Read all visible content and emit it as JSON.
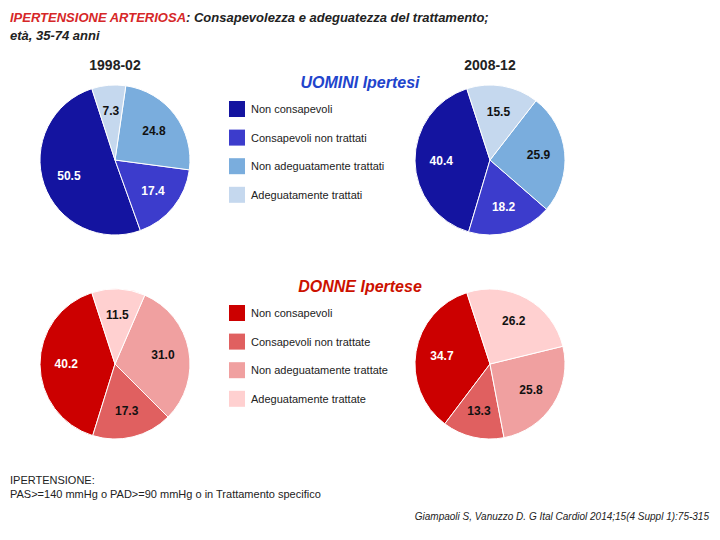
{
  "title": [
    "IPERTENSIONE ARTERIOSA",
    ": Consapevolezza e adeguatezza del trattamento;"
  ],
  "subtitle": "età, 35-74 anni",
  "annotations": [
    "IPERTENSIONE:",
    "PAS>=140 mmHg o PAD>=90 mmHg o in Trattamento specifico",
    "Giampaoli S, Vanuzzo D. G Ital Cardiol 2014;15(4 Suppl 1):75-315"
  ],
  "chart_data": [
    {
      "type": "pie",
      "title": "UOMINI Ipertesi",
      "color": "#2244cc",
      "categories": [
        "Non consapevoli",
        "Consapevoli non trattati",
        "Non adeguatamente trattati",
        "Adeguatamente trattati"
      ],
      "colors": [
        "#1414a0",
        "#3c3ccc",
        "#7aaddd",
        "#c5d8ee"
      ],
      "series": [
        {
          "name": "1998-02",
          "values": [
            50.5,
            17.4,
            24.8,
            7.3
          ]
        },
        {
          "name": "2008-12",
          "values": [
            40.4,
            18.2,
            25.9,
            15.5
          ]
        }
      ],
      "data_labels": true,
      "legend": "center"
    },
    {
      "type": "pie",
      "title": "DONNE Ipertese",
      "color": "#cc1100",
      "categories": [
        "Non consapevoli",
        "Consapevoli non trattate",
        "Non adeguatamente trattate",
        "Adeguatamente trattate"
      ],
      "colors": [
        "#cc0000",
        "#e06060",
        "#f0a0a0",
        "#ffd0d0"
      ],
      "series": [
        {
          "values": [
            40.2,
            17.3,
            31.0,
            11.5
          ],
          "value_labels": [
            "40.2",
            "17.3",
            "31.0",
            "11.5"
          ]
        },
        {
          "values": [
            34.7,
            13.3,
            25.8,
            26.2
          ]
        }
      ],
      "data_labels": true,
      "legend": "center"
    }
  ]
}
